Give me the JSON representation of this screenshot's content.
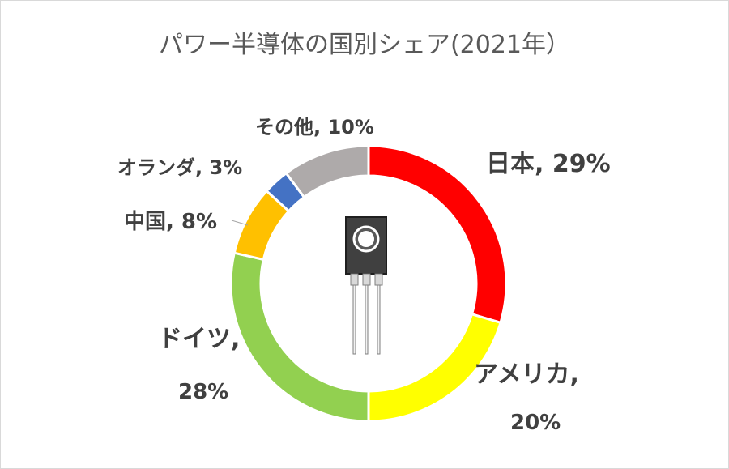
{
  "chart_data": {
    "type": "pie",
    "title": "パワー半導体の国別シェア(2021年）",
    "series": [
      {
        "label": "日本",
        "value": 29,
        "pct": "29%",
        "color": "#FF0000"
      },
      {
        "label": "アメリカ",
        "value": 20,
        "pct": "20%",
        "color": "#FFFF00"
      },
      {
        "label": "ドイツ",
        "value": 28,
        "pct": "28%",
        "color": "#92D050"
      },
      {
        "label": "中国",
        "value": 8,
        "pct": "8%",
        "color": "#FFC000"
      },
      {
        "label": "オランダ",
        "value": 3,
        "pct": "3%",
        "color": "#4472C4"
      },
      {
        "label": "その他",
        "value": 10,
        "pct": "10%",
        "color": "#AEAAAA"
      }
    ],
    "style": "doughnut",
    "label_format": "{label}, {pct}",
    "center_icon": "transistor-icon"
  }
}
